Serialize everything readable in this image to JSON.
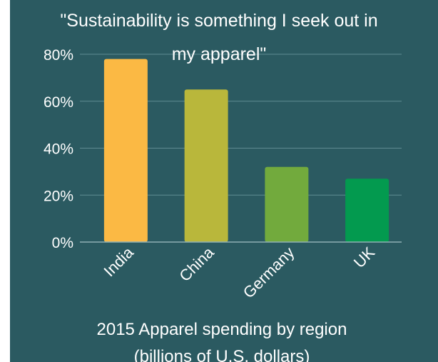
{
  "chart_data": {
    "type": "bar",
    "title_lines": [
      "\"Sustainability is something I seek out in",
      "my apparel\""
    ],
    "categories": [
      "India",
      "China",
      "Germany",
      "UK"
    ],
    "values": [
      78,
      65,
      32,
      27
    ],
    "bar_colors": [
      "#fbb944",
      "#b9b73b",
      "#72aa3d",
      "#039a4f"
    ],
    "ylim": [
      0,
      80
    ],
    "yticks": [
      0,
      20,
      40,
      60,
      80
    ],
    "ytick_labels": [
      "0%",
      "20%",
      "40%",
      "60%",
      "80%"
    ],
    "xlabel_lines": [
      "2015 Apparel spending by region",
      "(billions of U.S. dollars)"
    ],
    "ylabel": "",
    "grid": true,
    "legend": "none"
  },
  "colors": {
    "background": "#2b5a61",
    "text": "#ffffff",
    "gridline": "#5f8c92"
  }
}
